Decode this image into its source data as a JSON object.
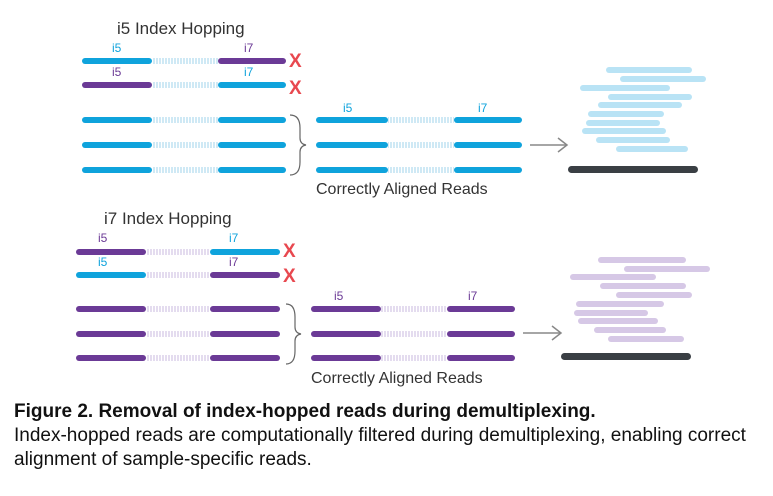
{
  "colors": {
    "blue": "#0fa3dc",
    "blue_light": "#b9e3f5",
    "purple": "#6b3a96",
    "purple_light": "#d6c8e6",
    "insert_blue": "#cfe9f5",
    "insert_purple": "#e4dcef",
    "x_red": "#e8484f",
    "genome": "#3a3f44",
    "arrow": "#888888"
  },
  "panels": [
    {
      "title": "i5 Index Hopping",
      "i5_label": "i5",
      "i7_label": "i7",
      "x_mark": "X",
      "aligned_label": "Correctly Aligned Reads",
      "hopped": [
        {
          "i5": "blue",
          "i7": "purple"
        },
        {
          "i5": "purple",
          "i7": "blue"
        }
      ],
      "correct_color": "blue"
    },
    {
      "title": "i7 Index Hopping",
      "i5_label": "i5",
      "i7_label": "i7",
      "x_mark": "X",
      "aligned_label": "Correctly Aligned Reads",
      "hopped": [
        {
          "i5": "purple",
          "i7": "blue"
        },
        {
          "i5": "blue",
          "i7": "purple"
        }
      ],
      "correct_color": "purple"
    }
  ],
  "caption": {
    "title": "Figure 2. Removal of index-hopped reads during demultiplexing.",
    "body": "Index-hopped reads are computationally filtered during demultiplexing, enabling correct alignment of sample-specific reads."
  }
}
